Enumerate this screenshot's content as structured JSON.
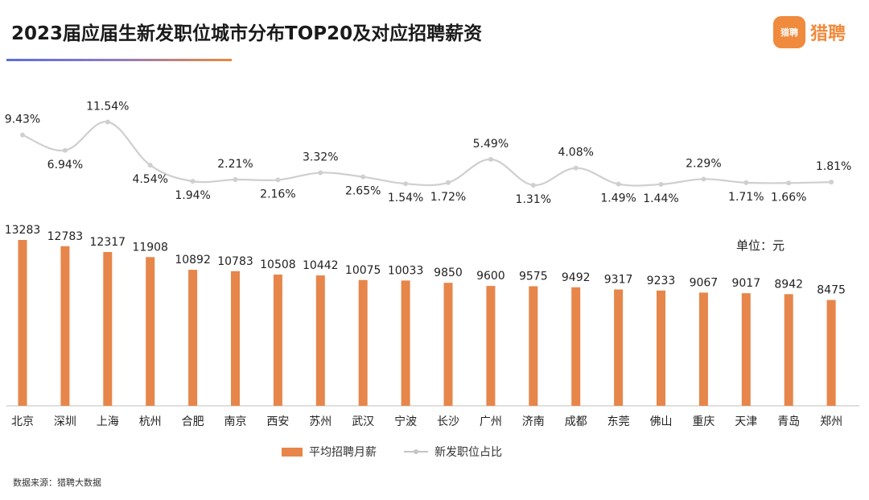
{
  "header": {
    "title": "2023届应届生新发职位城市分布TOP20及对应招聘薪资",
    "logo_mark": "猎聘",
    "logo_text": "猎聘"
  },
  "unit_label": "单位：元",
  "source_label": "数据来源：猎聘大数据",
  "colors": {
    "bar": "#e6864a",
    "line": "#cfcfcf",
    "marker": "#cfcfcf",
    "accent": "#f08a3c"
  },
  "chart_data": {
    "type": "bar",
    "title": "2023届应届生新发职位城市分布TOP20及对应招聘薪资",
    "categories": [
      "北京",
      "深圳",
      "上海",
      "杭州",
      "合肥",
      "南京",
      "西安",
      "苏州",
      "武汉",
      "宁波",
      "长沙",
      "广州",
      "济南",
      "成都",
      "东莞",
      "佛山",
      "重庆",
      "天津",
      "青岛",
      "郑州"
    ],
    "series": [
      {
        "name": "平均招聘月薪",
        "type": "bar",
        "values": [
          13283,
          12783,
          12317,
          11908,
          10892,
          10783,
          10508,
          10442,
          10075,
          10033,
          9850,
          9600,
          9575,
          9492,
          9317,
          9233,
          9067,
          9017,
          8942,
          8475
        ]
      },
      {
        "name": "新发职位占比",
        "type": "line",
        "unit": "%",
        "values": [
          9.43,
          6.94,
          11.54,
          4.54,
          1.94,
          2.21,
          2.16,
          3.32,
          2.65,
          1.54,
          1.72,
          5.49,
          1.31,
          4.08,
          1.49,
          1.44,
          2.29,
          1.71,
          1.66,
          1.81
        ]
      }
    ],
    "bar_labels": [
      "13283",
      "12783",
      "12317",
      "11908",
      "10892",
      "10783",
      "10508",
      "10442",
      "10075",
      "10033",
      "9850",
      "9600",
      "9575",
      "9492",
      "9317",
      "9233",
      "9067",
      "9017",
      "8942",
      "8475"
    ],
    "line_labels": [
      "9.43%",
      "6.94%",
      "11.54%",
      "4.54%",
      "1.94%",
      "2.21%",
      "2.16%",
      "3.32%",
      "2.65%",
      "1.54%",
      "1.72%",
      "5.49%",
      "1.31%",
      "4.08%",
      "1.49%",
      "1.44%",
      "2.29%",
      "1.71%",
      "1.66%",
      "1.81%"
    ],
    "ylim": [
      0,
      14000
    ],
    "line_ylim": [
      0,
      12
    ],
    "legend": [
      "平均招聘月薪",
      "新发职位占比"
    ],
    "legend_position": "bottom"
  }
}
